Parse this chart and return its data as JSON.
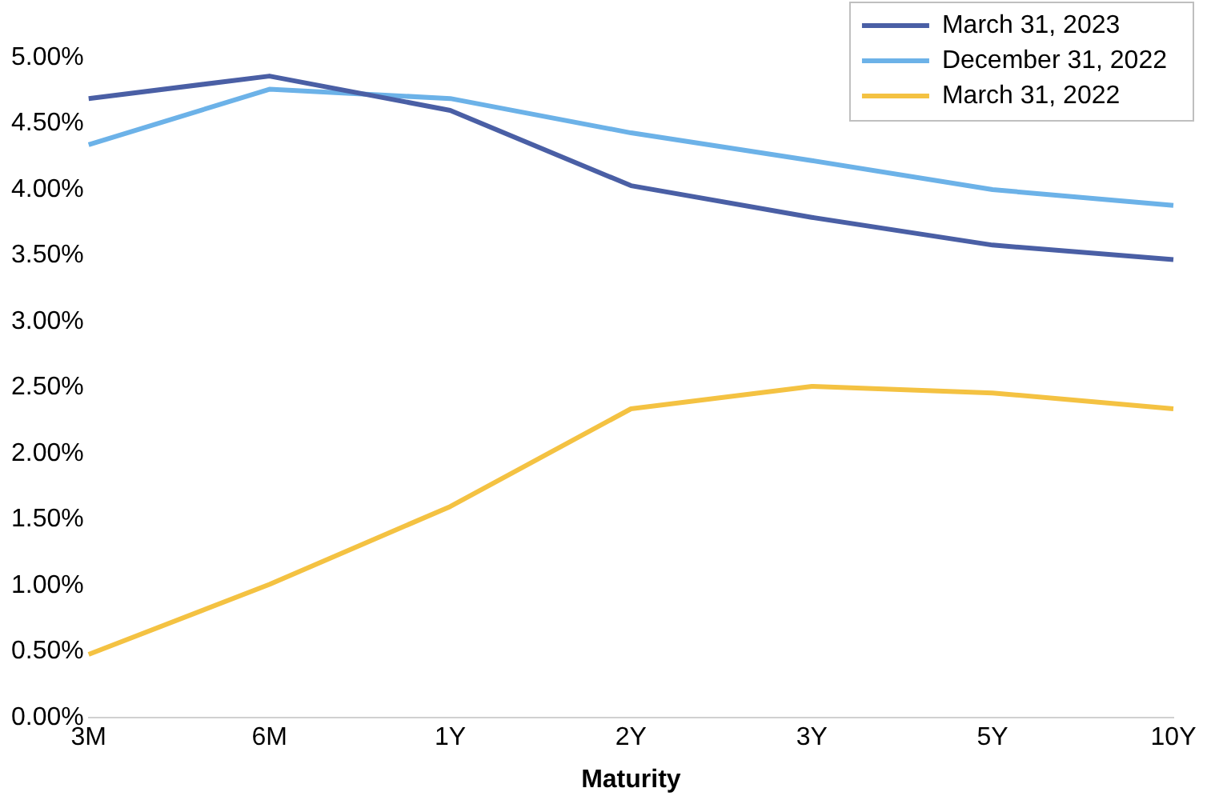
{
  "chart_data": {
    "type": "line",
    "xlabel": "Maturity",
    "categories": [
      "3M",
      "6M",
      "1Y",
      "2Y",
      "3Y",
      "5Y",
      "10Y"
    ],
    "ylim": [
      0,
      5
    ],
    "yticks": [
      {
        "value": 0,
        "label": "0.00%"
      },
      {
        "value": 0.5,
        "label": "0.50%"
      },
      {
        "value": 1,
        "label": "1.00%"
      },
      {
        "value": 1.5,
        "label": "1.50%"
      },
      {
        "value": 2,
        "label": "2.00%"
      },
      {
        "value": 2.5,
        "label": "2.50%"
      },
      {
        "value": 3,
        "label": "3.00%"
      },
      {
        "value": 3.5,
        "label": "3.50%"
      },
      {
        "value": 4,
        "label": "4.00%"
      },
      {
        "value": 4.5,
        "label": "4.50%"
      },
      {
        "value": 5,
        "label": "5.00%"
      }
    ],
    "series": [
      {
        "name": "March 31, 2023",
        "color": "#4a5fa5",
        "values": [
          4.69,
          4.86,
          4.6,
          4.03,
          3.79,
          3.58,
          3.47
        ]
      },
      {
        "name": "December 31, 2022",
        "color": "#6cb2e8",
        "values": [
          4.34,
          4.76,
          4.69,
          4.43,
          4.22,
          4.0,
          3.88
        ]
      },
      {
        "name": "March 31, 2022",
        "color": "#f4c242",
        "values": [
          0.48,
          1.01,
          1.6,
          2.34,
          2.51,
          2.46,
          2.34
        ]
      }
    ],
    "grid": false,
    "legend": "top right",
    "marker": "none",
    "line_style": "solid"
  }
}
